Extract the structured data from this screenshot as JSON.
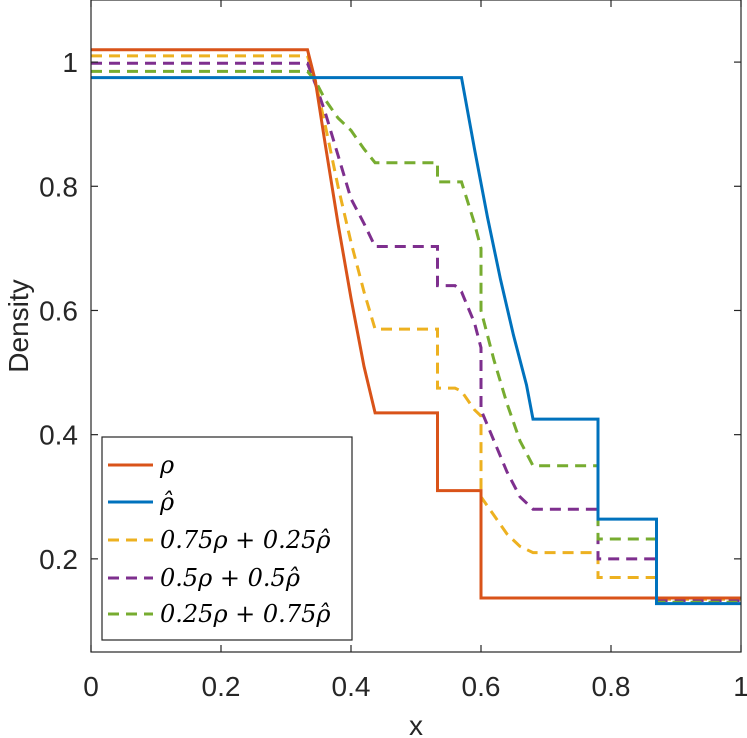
{
  "chart_data": {
    "type": "line",
    "title": "",
    "xlabel": "x",
    "ylabel": "Density",
    "xlim": [
      0,
      1
    ],
    "ylim": [
      0.05,
      1.1
    ],
    "xticks": [
      0,
      0.2,
      0.4,
      0.6,
      0.8,
      1
    ],
    "xtick_labels": [
      "0",
      "0.2",
      "0.4",
      "0.6",
      "0.8",
      "1"
    ],
    "yticks": [
      0.2,
      0.4,
      0.6,
      0.8,
      1
    ],
    "ytick_labels": [
      "0.2",
      "0.4",
      "0.6",
      "0.8",
      "1"
    ],
    "grid": false,
    "legend_position": "bottom-left",
    "series": [
      {
        "name": "ρ",
        "color": "#D95319",
        "dash": "solid",
        "x": [
          0,
          0.333,
          0.345,
          0.36,
          0.38,
          0.4,
          0.42,
          0.437,
          0.533,
          0.533,
          0.6,
          0.6,
          1.0
        ],
        "y": [
          1.02,
          1.02,
          0.97,
          0.87,
          0.74,
          0.62,
          0.51,
          0.435,
          0.435,
          0.31,
          0.31,
          0.137,
          0.137
        ]
      },
      {
        "name": "ρ̂",
        "color": "#0072BD",
        "dash": "solid",
        "x": [
          0,
          0.57,
          0.59,
          0.61,
          0.63,
          0.65,
          0.67,
          0.68,
          0.78,
          0.78,
          0.87,
          0.87,
          1.0
        ],
        "y": [
          0.975,
          0.975,
          0.86,
          0.75,
          0.65,
          0.56,
          0.48,
          0.425,
          0.425,
          0.264,
          0.264,
          0.128,
          0.128
        ]
      },
      {
        "name": "0.75ρ + 0.25ρ̂",
        "color": "#EDB120",
        "dash": "dashed",
        "x": [
          0,
          0.333,
          0.345,
          0.36,
          0.38,
          0.4,
          0.42,
          0.437,
          0.533,
          0.533,
          0.56,
          0.57,
          0.59,
          0.6,
          0.6,
          0.62,
          0.64,
          0.66,
          0.68,
          0.78,
          0.78,
          0.87,
          0.87,
          1.0
        ],
        "y": [
          1.01,
          1.01,
          0.97,
          0.9,
          0.8,
          0.71,
          0.63,
          0.57,
          0.57,
          0.475,
          0.475,
          0.47,
          0.44,
          0.43,
          0.3,
          0.27,
          0.24,
          0.22,
          0.21,
          0.21,
          0.17,
          0.17,
          0.135,
          0.135
        ]
      },
      {
        "name": "0.5ρ + 0.5ρ̂",
        "color": "#7E2F8E",
        "dash": "dashed",
        "x": [
          0,
          0.333,
          0.345,
          0.36,
          0.38,
          0.4,
          0.42,
          0.437,
          0.533,
          0.533,
          0.56,
          0.57,
          0.59,
          0.6,
          0.6,
          0.62,
          0.64,
          0.66,
          0.68,
          0.78,
          0.78,
          0.87,
          0.87,
          1.0
        ],
        "y": [
          0.998,
          0.998,
          0.965,
          0.92,
          0.85,
          0.78,
          0.74,
          0.703,
          0.703,
          0.64,
          0.64,
          0.63,
          0.58,
          0.54,
          0.44,
          0.39,
          0.34,
          0.3,
          0.28,
          0.28,
          0.2,
          0.2,
          0.133,
          0.133
        ]
      },
      {
        "name": "0.25ρ + 0.75ρ̂",
        "color": "#77AC30",
        "dash": "dashed",
        "x": [
          0,
          0.333,
          0.345,
          0.36,
          0.38,
          0.4,
          0.42,
          0.437,
          0.533,
          0.533,
          0.57,
          0.59,
          0.6,
          0.6,
          0.62,
          0.64,
          0.66,
          0.68,
          0.78,
          0.78,
          0.87,
          0.87,
          1.0
        ],
        "y": [
          0.985,
          0.985,
          0.97,
          0.94,
          0.91,
          0.89,
          0.86,
          0.838,
          0.838,
          0.807,
          0.807,
          0.74,
          0.7,
          0.6,
          0.52,
          0.45,
          0.39,
          0.35,
          0.35,
          0.232,
          0.232,
          0.13,
          0.13
        ]
      }
    ]
  }
}
